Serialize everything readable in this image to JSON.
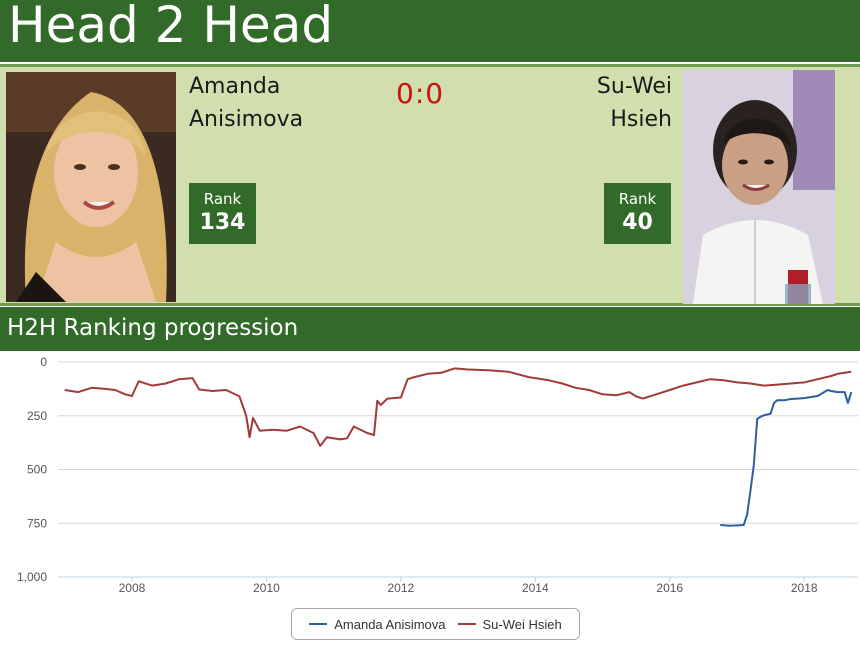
{
  "header": {
    "title": "Head 2 Head"
  },
  "player_left": {
    "name_line1": "Amanda",
    "name_line2": "Anisimova",
    "rank_label": "Rank",
    "rank": "134",
    "photo_icon": "player-photo-amanda-anisimova"
  },
  "player_right": {
    "name_line1": "Su-Wei",
    "name_line2": "Hsieh",
    "rank_label": "Rank",
    "rank": "40",
    "photo_icon": "player-photo-su-wei-hsieh"
  },
  "score": "0:0",
  "section": {
    "title": "H2H Ranking progression"
  },
  "colors": {
    "header_green": "#326a29",
    "panel_green": "#d1deae",
    "score_red": "#cc1111",
    "series_anisimova": "#2f5f9e",
    "series_hsieh": "#a33a3a"
  },
  "chart_data": {
    "type": "line",
    "title": "",
    "xlabel": "",
    "ylabel": "",
    "y_inverted": true,
    "xlim": [
      2006.9,
      2018.8
    ],
    "ylim": [
      0,
      1000
    ],
    "x_ticks": [
      "2008",
      "2010",
      "2012",
      "2014",
      "2016",
      "2018"
    ],
    "y_ticks": [
      "0",
      "250",
      "500",
      "750",
      "1,000"
    ],
    "grid": "horizontal",
    "legend_position": "bottom-center",
    "series": [
      {
        "name": "Amanda Anisimova",
        "color": "#2f5f9e",
        "x": [
          2016.75,
          2016.9,
          2017.0,
          2017.1,
          2017.15,
          2017.2,
          2017.25,
          2017.3,
          2017.35,
          2017.4,
          2017.5,
          2017.55,
          2017.6,
          2017.7,
          2017.8,
          2017.9,
          2018.0,
          2018.2,
          2018.35,
          2018.4,
          2018.5,
          2018.6,
          2018.65,
          2018.7
        ],
        "y": [
          758,
          762,
          760,
          758,
          710,
          600,
          480,
          265,
          255,
          248,
          240,
          190,
          178,
          178,
          172,
          170,
          168,
          158,
          130,
          135,
          140,
          140,
          190,
          140
        ]
      },
      {
        "name": "Su-Wei Hsieh",
        "color": "#a33a3a",
        "x": [
          2007.0,
          2007.2,
          2007.4,
          2007.6,
          2007.75,
          2007.9,
          2008.0,
          2008.1,
          2008.3,
          2008.5,
          2008.7,
          2008.9,
          2009.0,
          2009.2,
          2009.4,
          2009.6,
          2009.7,
          2009.75,
          2009.8,
          2009.9,
          2010.1,
          2010.3,
          2010.5,
          2010.7,
          2010.8,
          2010.9,
          2011.1,
          2011.2,
          2011.3,
          2011.5,
          2011.6,
          2011.65,
          2011.7,
          2011.8,
          2012.0,
          2012.1,
          2012.2,
          2012.4,
          2012.6,
          2012.8,
          2013.0,
          2013.3,
          2013.6,
          2013.9,
          2014.2,
          2014.4,
          2014.6,
          2014.8,
          2015.0,
          2015.2,
          2015.4,
          2015.5,
          2015.6,
          2015.8,
          2016.0,
          2016.2,
          2016.4,
          2016.6,
          2016.8,
          2017.0,
          2017.2,
          2017.4,
          2017.6,
          2017.8,
          2018.0,
          2018.2,
          2018.4,
          2018.5,
          2018.6,
          2018.7
        ],
        "y": [
          130,
          140,
          120,
          125,
          130,
          150,
          158,
          90,
          110,
          100,
          80,
          75,
          128,
          135,
          130,
          160,
          250,
          350,
          260,
          320,
          315,
          320,
          300,
          330,
          390,
          350,
          360,
          355,
          300,
          330,
          340,
          180,
          200,
          170,
          165,
          80,
          70,
          55,
          50,
          30,
          35,
          38,
          45,
          70,
          85,
          100,
          120,
          130,
          150,
          155,
          140,
          160,
          170,
          150,
          130,
          110,
          95,
          80,
          85,
          95,
          100,
          110,
          105,
          100,
          95,
          80,
          65,
          55,
          50,
          45
        ]
      }
    ]
  }
}
